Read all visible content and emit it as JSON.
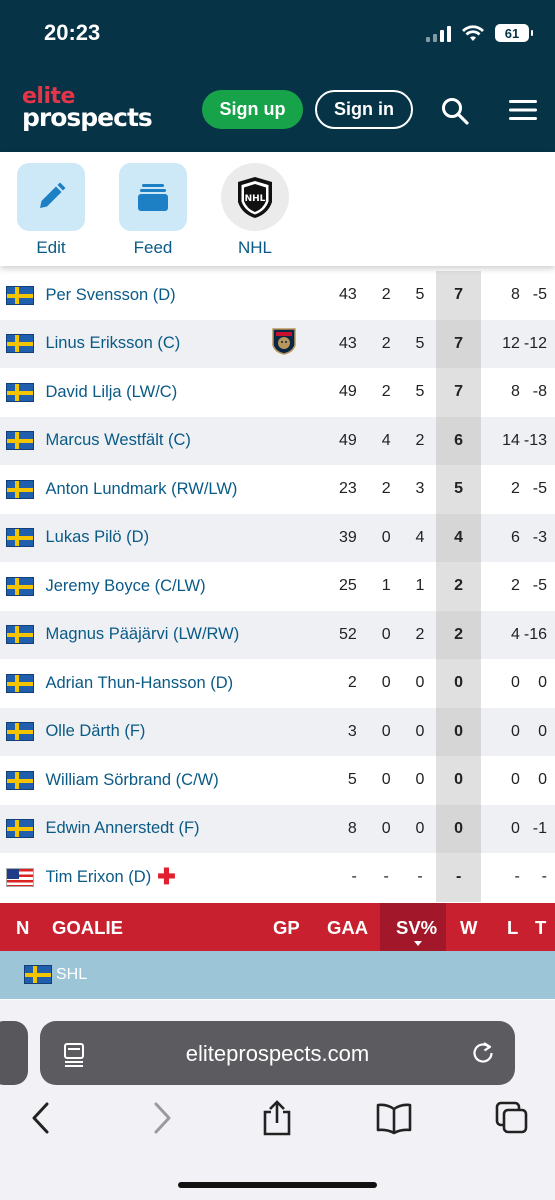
{
  "status_bar": {
    "time": "20:23",
    "battery": "61"
  },
  "header": {
    "logo_line1": "elite",
    "logo_line2": "prospects",
    "signup_label": "Sign up",
    "signin_label": "Sign in"
  },
  "shortcuts": [
    {
      "label": "Edit",
      "icon": "pencil-icon"
    },
    {
      "label": "Feed",
      "icon": "stack-icon"
    },
    {
      "label": "NHL",
      "icon": "nhl-logo"
    }
  ],
  "players": [
    {
      "flag": "sweden",
      "name": "Per Svensson (D)",
      "team_logo": "",
      "gp": "43",
      "g": "2",
      "a": "5",
      "tp": "7",
      "pim": "8",
      "pm": "-5"
    },
    {
      "flag": "sweden",
      "name": "Linus Eriksson (C)",
      "team_logo": "florida-panthers-logo",
      "gp": "43",
      "g": "2",
      "a": "5",
      "tp": "7",
      "pim": "12",
      "pm": "-12"
    },
    {
      "flag": "sweden",
      "name": "David Lilja (LW/C)",
      "team_logo": "",
      "gp": "49",
      "g": "2",
      "a": "5",
      "tp": "7",
      "pim": "8",
      "pm": "-8"
    },
    {
      "flag": "sweden",
      "name": "Marcus Westfält (C)",
      "team_logo": "",
      "gp": "49",
      "g": "4",
      "a": "2",
      "tp": "6",
      "pim": "14",
      "pm": "-13"
    },
    {
      "flag": "sweden",
      "name": "Anton Lundmark (RW/LW)",
      "team_logo": "",
      "gp": "23",
      "g": "2",
      "a": "3",
      "tp": "5",
      "pim": "2",
      "pm": "-5"
    },
    {
      "flag": "sweden",
      "name": "Lukas Pilö (D)",
      "team_logo": "",
      "gp": "39",
      "g": "0",
      "a": "4",
      "tp": "4",
      "pim": "6",
      "pm": "-3"
    },
    {
      "flag": "sweden",
      "name": "Jeremy Boyce (C/LW)",
      "team_logo": "",
      "gp": "25",
      "g": "1",
      "a": "1",
      "tp": "2",
      "pim": "2",
      "pm": "-5"
    },
    {
      "flag": "sweden",
      "name": "Magnus Pääjärvi (LW/RW)",
      "team_logo": "",
      "gp": "52",
      "g": "0",
      "a": "2",
      "tp": "2",
      "pim": "4",
      "pm": "-16"
    },
    {
      "flag": "sweden",
      "name": "Adrian Thun-Hansson (D)",
      "team_logo": "",
      "gp": "2",
      "g": "0",
      "a": "0",
      "tp": "0",
      "pim": "0",
      "pm": "0"
    },
    {
      "flag": "sweden",
      "name": "Olle Därth (F)",
      "team_logo": "",
      "gp": "3",
      "g": "0",
      "a": "0",
      "tp": "0",
      "pim": "0",
      "pm": "0"
    },
    {
      "flag": "sweden",
      "name": "William Sörbrand (C/W)",
      "team_logo": "",
      "gp": "5",
      "g": "0",
      "a": "0",
      "tp": "0",
      "pim": "0",
      "pm": "0"
    },
    {
      "flag": "sweden",
      "name": "Edwin Annerstedt (F)",
      "team_logo": "",
      "gp": "8",
      "g": "0",
      "a": "0",
      "tp": "0",
      "pim": "0",
      "pm": "-1"
    },
    {
      "flag": "sweden-usa",
      "name": "Tim Erixon (D)",
      "team_logo": "",
      "injured": true,
      "gp": "-",
      "g": "-",
      "a": "-",
      "tp": "-",
      "pim": "-",
      "pm": "-"
    }
  ],
  "goalie_header": {
    "n": "N",
    "goalie": "GOALIE",
    "gp": "GP",
    "gaa": "GAA",
    "svp": "SV%",
    "w": "W",
    "l": "L",
    "t": "T"
  },
  "league_row": {
    "flag": "sweden",
    "label": "SHL"
  },
  "browser": {
    "url": "eliteprospects.com"
  },
  "colors": {
    "header_bg": "#063346",
    "accent_red": "#c8202f",
    "signup_green": "#17a34a",
    "link_blue": "#0a5a86",
    "league_row": "#9dc5d8"
  }
}
